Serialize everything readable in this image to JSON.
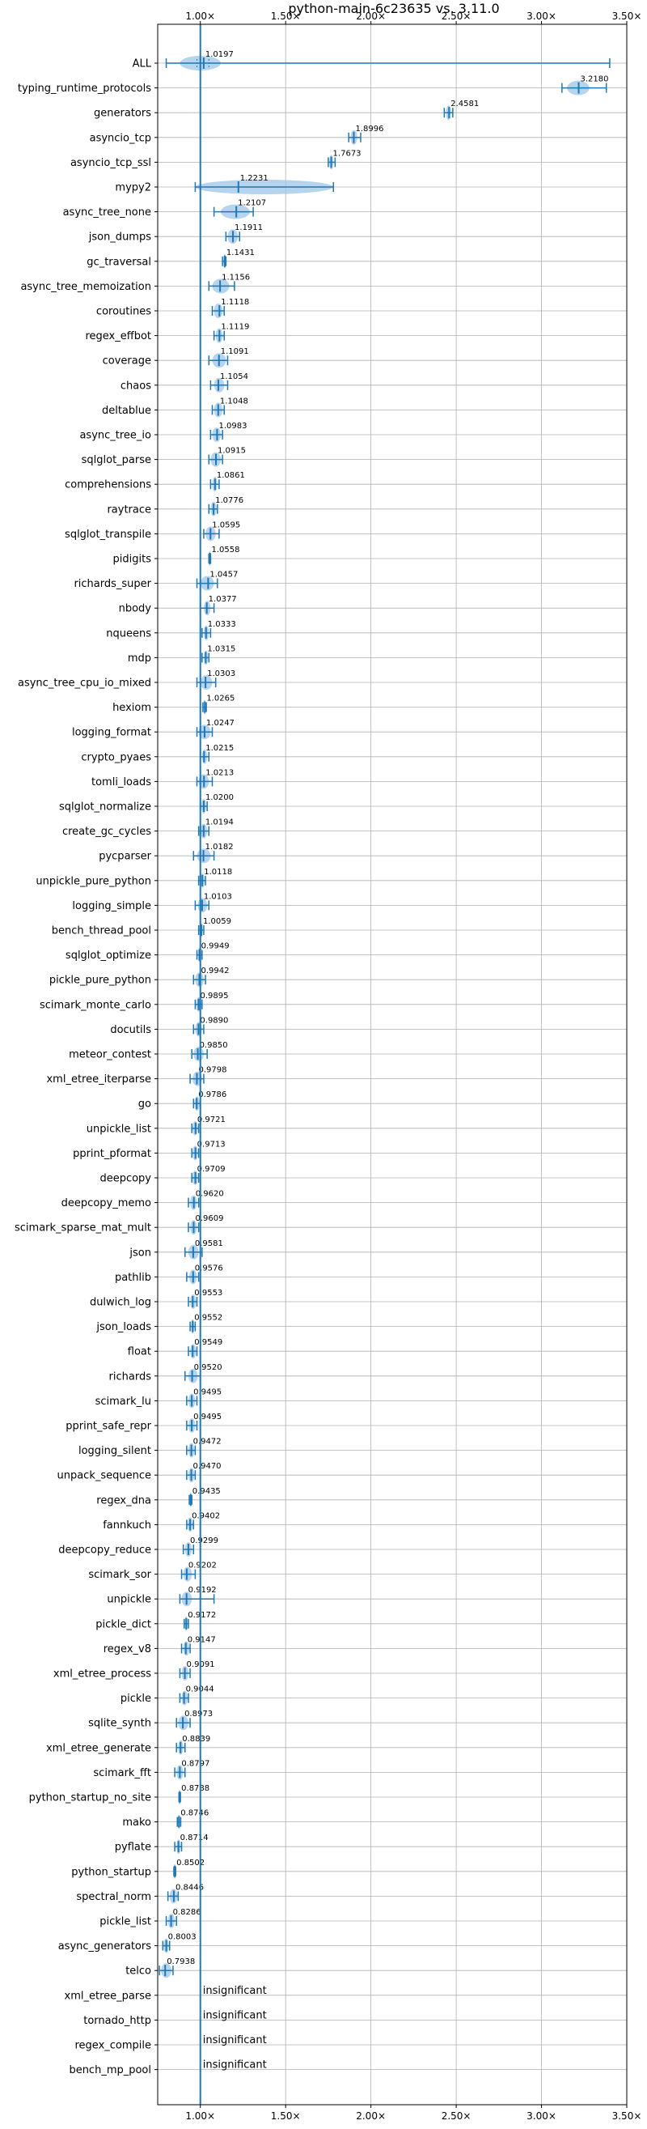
{
  "chart_data": {
    "type": "violin",
    "title": "python-main-6c23635 vs. 3.11.0",
    "xlabel": "",
    "ylabel": "",
    "xlim": [
      0.75,
      3.5
    ],
    "xticks": [
      1.0,
      1.5,
      2.0,
      2.5,
      3.0,
      3.5
    ],
    "xtick_labels": [
      "1.00×",
      "1.50×",
      "2.00×",
      "2.50×",
      "3.00×",
      "3.50×"
    ],
    "tick_positions": [
      "top",
      "bottom"
    ],
    "grid": true,
    "reference_line": 1.0,
    "colors": {
      "violin": "#9fc5e8",
      "marker": "#1f77b4",
      "grid": "#b0b0b0"
    },
    "benchmarks": [
      {
        "name": "ALL",
        "mean": 1.0197,
        "label": "1.0197",
        "range": [
          0.8,
          3.4
        ],
        "q": [
          0.98,
          1.05
        ],
        "violin": [
          0.88,
          1.12
        ]
      },
      {
        "name": "typing_runtime_protocols",
        "mean": 3.218,
        "label": "3.2180",
        "range": [
          3.12,
          3.38
        ],
        "violin": [
          3.15,
          3.28
        ]
      },
      {
        "name": "generators",
        "mean": 2.4581,
        "label": "2.4581",
        "range": [
          2.43,
          2.48
        ],
        "violin": [
          2.44,
          2.47
        ]
      },
      {
        "name": "asyncio_tcp",
        "mean": 1.8996,
        "label": "1.8996",
        "range": [
          1.87,
          1.94
        ],
        "violin": [
          1.88,
          1.92
        ]
      },
      {
        "name": "asyncio_tcp_ssl",
        "mean": 1.7673,
        "label": "1.7673",
        "range": [
          1.75,
          1.79
        ],
        "violin": [
          1.755,
          1.78
        ]
      },
      {
        "name": "mypy2",
        "mean": 1.2231,
        "label": "1.2231",
        "range": [
          0.97,
          1.78
        ],
        "violin": [
          0.97,
          1.78
        ]
      },
      {
        "name": "async_tree_none",
        "mean": 1.2107,
        "label": "1.2107",
        "range": [
          1.08,
          1.31
        ],
        "violin": [
          1.12,
          1.29
        ]
      },
      {
        "name": "json_dumps",
        "mean": 1.1911,
        "label": "1.1911",
        "range": [
          1.15,
          1.23
        ],
        "violin": [
          1.16,
          1.22
        ]
      },
      {
        "name": "gc_traversal",
        "mean": 1.1431,
        "label": "1.1431",
        "range": [
          1.13,
          1.15
        ],
        "violin": [
          1.135,
          1.15
        ]
      },
      {
        "name": "async_tree_memoization",
        "mean": 1.1156,
        "label": "1.1156",
        "range": [
          1.05,
          1.2
        ],
        "violin": [
          1.07,
          1.17
        ]
      },
      {
        "name": "coroutines",
        "mean": 1.1118,
        "label": "1.1118",
        "range": [
          1.07,
          1.14
        ],
        "violin": [
          1.08,
          1.13
        ]
      },
      {
        "name": "regex_effbot",
        "mean": 1.1119,
        "label": "1.1119",
        "range": [
          1.08,
          1.14
        ],
        "violin": [
          1.09,
          1.13
        ]
      },
      {
        "name": "coverage",
        "mean": 1.1091,
        "label": "1.1091",
        "range": [
          1.05,
          1.16
        ],
        "violin": [
          1.07,
          1.15
        ]
      },
      {
        "name": "chaos",
        "mean": 1.1054,
        "label": "1.1054",
        "range": [
          1.06,
          1.16
        ],
        "violin": [
          1.08,
          1.14
        ]
      },
      {
        "name": "deltablue",
        "mean": 1.1048,
        "label": "1.1048",
        "range": [
          1.07,
          1.14
        ],
        "violin": [
          1.08,
          1.13
        ]
      },
      {
        "name": "async_tree_io",
        "mean": 1.0983,
        "label": "1.0983",
        "range": [
          1.06,
          1.13
        ],
        "violin": [
          1.07,
          1.12
        ]
      },
      {
        "name": "sqlglot_parse",
        "mean": 1.0915,
        "label": "1.0915",
        "range": [
          1.05,
          1.13
        ],
        "violin": [
          1.06,
          1.12
        ]
      },
      {
        "name": "comprehensions",
        "mean": 1.0861,
        "label": "1.0861",
        "range": [
          1.06,
          1.11
        ],
        "violin": [
          1.07,
          1.1
        ]
      },
      {
        "name": "raytrace",
        "mean": 1.0776,
        "label": "1.0776",
        "range": [
          1.05,
          1.1
        ],
        "violin": [
          1.06,
          1.095
        ]
      },
      {
        "name": "sqlglot_transpile",
        "mean": 1.0595,
        "label": "1.0595",
        "range": [
          1.02,
          1.11
        ],
        "violin": [
          1.03,
          1.09
        ]
      },
      {
        "name": "pidigits",
        "mean": 1.0558,
        "label": "1.0558",
        "range": [
          1.05,
          1.06
        ],
        "violin": [
          1.052,
          1.058
        ]
      },
      {
        "name": "richards_super",
        "mean": 1.0457,
        "label": "1.0457",
        "range": [
          0.98,
          1.1
        ],
        "violin": [
          1.0,
          1.08
        ]
      },
      {
        "name": "nbody",
        "mean": 1.0377,
        "label": "1.0377",
        "range": [
          1.0,
          1.08
        ],
        "violin": [
          1.02,
          1.06
        ]
      },
      {
        "name": "nqueens",
        "mean": 1.0333,
        "label": "1.0333",
        "range": [
          1.01,
          1.06
        ],
        "violin": [
          1.02,
          1.05
        ]
      },
      {
        "name": "mdp",
        "mean": 1.0315,
        "label": "1.0315",
        "range": [
          1.01,
          1.05
        ],
        "violin": [
          1.02,
          1.045
        ]
      },
      {
        "name": "async_tree_cpu_io_mixed",
        "mean": 1.0303,
        "label": "1.0303",
        "range": [
          0.98,
          1.09
        ],
        "violin": [
          1.0,
          1.07
        ]
      },
      {
        "name": "hexiom",
        "mean": 1.0265,
        "label": "1.0265",
        "range": [
          1.015,
          1.035
        ],
        "violin": [
          1.02,
          1.03
        ]
      },
      {
        "name": "logging_format",
        "mean": 1.0247,
        "label": "1.0247",
        "range": [
          0.98,
          1.07
        ],
        "violin": [
          0.99,
          1.06
        ]
      },
      {
        "name": "crypto_pyaes",
        "mean": 1.0215,
        "label": "1.0215",
        "range": [
          1.0,
          1.05
        ],
        "violin": [
          1.01,
          1.04
        ]
      },
      {
        "name": "tomli_loads",
        "mean": 1.0213,
        "label": "1.0213",
        "range": [
          0.98,
          1.07
        ],
        "violin": [
          0.99,
          1.05
        ]
      },
      {
        "name": "sqlglot_normalize",
        "mean": 1.02,
        "label": "1.0200",
        "range": [
          1.0,
          1.04
        ],
        "violin": [
          1.005,
          1.035
        ]
      },
      {
        "name": "create_gc_cycles",
        "mean": 1.0194,
        "label": "1.0194",
        "range": [
          0.99,
          1.05
        ],
        "violin": [
          1.0,
          1.04
        ]
      },
      {
        "name": "pycparser",
        "mean": 1.0182,
        "label": "1.0182",
        "range": [
          0.96,
          1.08
        ],
        "violin": [
          0.98,
          1.06
        ]
      },
      {
        "name": "unpickle_pure_python",
        "mean": 1.0118,
        "label": "1.0118",
        "range": [
          0.99,
          1.03
        ],
        "violin": [
          1.0,
          1.025
        ]
      },
      {
        "name": "logging_simple",
        "mean": 1.0103,
        "label": "1.0103",
        "range": [
          0.97,
          1.05
        ],
        "violin": [
          0.985,
          1.04
        ]
      },
      {
        "name": "bench_thread_pool",
        "mean": 1.0059,
        "label": "1.0059",
        "range": [
          0.99,
          1.02
        ],
        "violin": [
          0.995,
          1.015
        ]
      },
      {
        "name": "sqlglot_optimize",
        "mean": 0.9949,
        "label": "0.9949",
        "range": [
          0.98,
          1.01
        ],
        "violin": [
          0.985,
          1.005
        ]
      },
      {
        "name": "pickle_pure_python",
        "mean": 0.9942,
        "label": "0.9942",
        "range": [
          0.96,
          1.03
        ],
        "violin": [
          0.97,
          1.02
        ]
      },
      {
        "name": "scimark_monte_carlo",
        "mean": 0.9895,
        "label": "0.9895",
        "range": [
          0.97,
          1.01
        ],
        "violin": [
          0.975,
          1.005
        ]
      },
      {
        "name": "docutils",
        "mean": 0.989,
        "label": "0.9890",
        "range": [
          0.96,
          1.02
        ],
        "violin": [
          0.97,
          1.01
        ]
      },
      {
        "name": "meteor_contest",
        "mean": 0.985,
        "label": "0.9850",
        "range": [
          0.95,
          1.04
        ],
        "violin": [
          0.96,
          1.02
        ]
      },
      {
        "name": "xml_etree_iterparse",
        "mean": 0.9798,
        "label": "0.9798",
        "range": [
          0.94,
          1.02
        ],
        "violin": [
          0.955,
          1.01
        ]
      },
      {
        "name": "go",
        "mean": 0.9786,
        "label": "0.9786",
        "range": [
          0.96,
          1.0
        ],
        "violin": [
          0.965,
          0.995
        ]
      },
      {
        "name": "unpickle_list",
        "mean": 0.9721,
        "label": "0.9721",
        "range": [
          0.95,
          0.99
        ],
        "violin": [
          0.955,
          0.985
        ]
      },
      {
        "name": "pprint_pformat",
        "mean": 0.9713,
        "label": "0.9713",
        "range": [
          0.95,
          0.99
        ],
        "violin": [
          0.955,
          0.985
        ]
      },
      {
        "name": "deepcopy",
        "mean": 0.9709,
        "label": "0.9709",
        "range": [
          0.95,
          0.99
        ],
        "violin": [
          0.955,
          0.985
        ]
      },
      {
        "name": "deepcopy_memo",
        "mean": 0.962,
        "label": "0.9620",
        "range": [
          0.93,
          0.99
        ],
        "violin": [
          0.94,
          0.98
        ]
      },
      {
        "name": "scimark_sparse_mat_mult",
        "mean": 0.9609,
        "label": "0.9609",
        "range": [
          0.93,
          0.99
        ],
        "violin": [
          0.94,
          0.98
        ]
      },
      {
        "name": "json",
        "mean": 0.9581,
        "label": "0.9581",
        "range": [
          0.91,
          1.01
        ],
        "violin": [
          0.93,
          0.99
        ]
      },
      {
        "name": "pathlib",
        "mean": 0.9576,
        "label": "0.9576",
        "range": [
          0.92,
          0.99
        ],
        "violin": [
          0.935,
          0.98
        ]
      },
      {
        "name": "dulwich_log",
        "mean": 0.9553,
        "label": "0.9553",
        "range": [
          0.93,
          0.98
        ],
        "violin": [
          0.94,
          0.975
        ]
      },
      {
        "name": "json_loads",
        "mean": 0.9552,
        "label": "0.9552",
        "range": [
          0.94,
          0.97
        ],
        "violin": [
          0.945,
          0.965
        ]
      },
      {
        "name": "float",
        "mean": 0.9549,
        "label": "0.9549",
        "range": [
          0.93,
          0.98
        ],
        "violin": [
          0.94,
          0.975
        ]
      },
      {
        "name": "richards",
        "mean": 0.952,
        "label": "0.9520",
        "range": [
          0.91,
          1.0
        ],
        "violin": [
          0.93,
          0.985
        ]
      },
      {
        "name": "scimark_lu",
        "mean": 0.9495,
        "label": "0.9495",
        "range": [
          0.92,
          0.98
        ],
        "violin": [
          0.93,
          0.97
        ]
      },
      {
        "name": "pprint_safe_repr",
        "mean": 0.9495,
        "label": "0.9495",
        "range": [
          0.92,
          0.98
        ],
        "violin": [
          0.93,
          0.97
        ]
      },
      {
        "name": "logging_silent",
        "mean": 0.9472,
        "label": "0.9472",
        "range": [
          0.92,
          0.97
        ],
        "violin": [
          0.93,
          0.965
        ]
      },
      {
        "name": "unpack_sequence",
        "mean": 0.947,
        "label": "0.9470",
        "range": [
          0.92,
          0.97
        ],
        "violin": [
          0.93,
          0.965
        ]
      },
      {
        "name": "regex_dna",
        "mean": 0.9435,
        "label": "0.9435",
        "range": [
          0.935,
          0.95
        ],
        "violin": [
          0.938,
          0.948
        ]
      },
      {
        "name": "fannkuch",
        "mean": 0.9402,
        "label": "0.9402",
        "range": [
          0.92,
          0.96
        ],
        "violin": [
          0.925,
          0.955
        ]
      },
      {
        "name": "deepcopy_reduce",
        "mean": 0.9299,
        "label": "0.9299",
        "range": [
          0.9,
          0.96
        ],
        "violin": [
          0.91,
          0.95
        ]
      },
      {
        "name": "scimark_sor",
        "mean": 0.9202,
        "label": "0.9202",
        "range": [
          0.89,
          0.97
        ],
        "violin": [
          0.9,
          0.95
        ]
      },
      {
        "name": "unpickle",
        "mean": 0.9192,
        "label": "0.9192",
        "range": [
          0.88,
          1.08
        ],
        "violin": [
          0.89,
          0.95
        ]
      },
      {
        "name": "pickle_dict",
        "mean": 0.9172,
        "label": "0.9172",
        "range": [
          0.905,
          0.93
        ],
        "violin": [
          0.91,
          0.925
        ]
      },
      {
        "name": "regex_v8",
        "mean": 0.9147,
        "label": "0.9147",
        "range": [
          0.89,
          0.94
        ],
        "violin": [
          0.9,
          0.935
        ]
      },
      {
        "name": "xml_etree_process",
        "mean": 0.9091,
        "label": "0.9091",
        "range": [
          0.88,
          0.94
        ],
        "violin": [
          0.89,
          0.93
        ]
      },
      {
        "name": "pickle",
        "mean": 0.9044,
        "label": "0.9044",
        "range": [
          0.88,
          0.93
        ],
        "violin": [
          0.89,
          0.925
        ]
      },
      {
        "name": "sqlite_synth",
        "mean": 0.8973,
        "label": "0.8973",
        "range": [
          0.86,
          0.94
        ],
        "violin": [
          0.87,
          0.93
        ]
      },
      {
        "name": "xml_etree_generate",
        "mean": 0.8839,
        "label": "0.8839",
        "range": [
          0.86,
          0.91
        ],
        "violin": [
          0.87,
          0.9
        ]
      },
      {
        "name": "scimark_fft",
        "mean": 0.8797,
        "label": "0.8797",
        "range": [
          0.85,
          0.91
        ],
        "violin": [
          0.86,
          0.9
        ]
      },
      {
        "name": "python_startup_no_site",
        "mean": 0.8788,
        "label": "0.8788",
        "range": [
          0.875,
          0.883
        ],
        "violin": [
          0.876,
          0.881
        ]
      },
      {
        "name": "mako",
        "mean": 0.8746,
        "label": "0.8746",
        "range": [
          0.865,
          0.885
        ],
        "violin": [
          0.868,
          0.882
        ]
      },
      {
        "name": "pyflate",
        "mean": 0.8714,
        "label": "0.8714",
        "range": [
          0.85,
          0.89
        ],
        "violin": [
          0.86,
          0.885
        ]
      },
      {
        "name": "python_startup",
        "mean": 0.8502,
        "label": "0.8502",
        "range": [
          0.845,
          0.855
        ],
        "violin": [
          0.847,
          0.853
        ]
      },
      {
        "name": "spectral_norm",
        "mean": 0.8446,
        "label": "0.8446",
        "range": [
          0.81,
          0.87
        ],
        "violin": [
          0.82,
          0.865
        ]
      },
      {
        "name": "pickle_list",
        "mean": 0.8286,
        "label": "0.8286",
        "range": [
          0.8,
          0.86
        ],
        "violin": [
          0.81,
          0.85
        ]
      },
      {
        "name": "async_generators",
        "mean": 0.8003,
        "label": "0.8003",
        "range": [
          0.78,
          0.82
        ],
        "violin": [
          0.785,
          0.815
        ]
      },
      {
        "name": "telco",
        "mean": 0.7938,
        "label": "0.7938",
        "range": [
          0.76,
          0.84
        ],
        "violin": [
          0.77,
          0.83
        ]
      },
      {
        "name": "xml_etree_parse",
        "mean": null,
        "label": "insignificant"
      },
      {
        "name": "tornado_http",
        "mean": null,
        "label": "insignificant"
      },
      {
        "name": "regex_compile",
        "mean": null,
        "label": "insignificant"
      },
      {
        "name": "bench_mp_pool",
        "mean": null,
        "label": "insignificant"
      }
    ]
  }
}
